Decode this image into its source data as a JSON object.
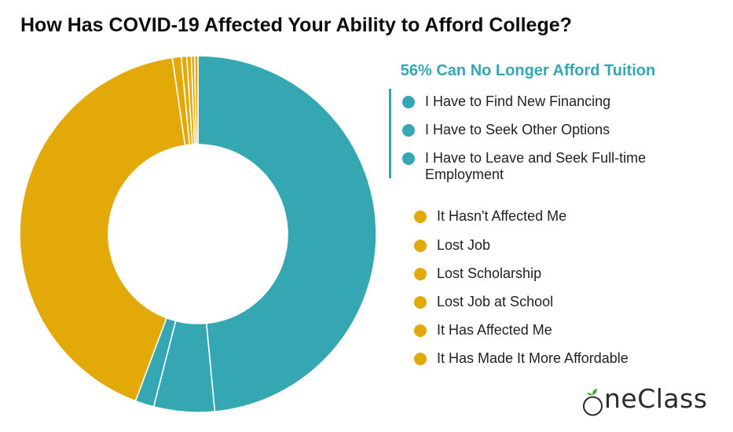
{
  "title": "How Has COVID-19 Affected Your Ability to Afford College?",
  "group_heading": "56% Can No Longer Afford Tuition",
  "brand": {
    "logo_first_letter": "O",
    "logo_rest": "neClass",
    "leaf_color": "#3cb043"
  },
  "colors": {
    "teal": "#34a7b2",
    "gold": "#e2a909"
  },
  "chart_data": {
    "type": "pie",
    "variant": "donut",
    "legend_position": "right",
    "series": [
      {
        "label": "I Have to Find New Financing",
        "value": 48.5,
        "color": "#34a7b2"
      },
      {
        "label": "I Have to Seek Other Options",
        "value": 5.5,
        "color": "#34a7b2"
      },
      {
        "label": "I Have to Leave and Seek Full-time Employment",
        "value": 1.7,
        "color": "#34a7b2"
      },
      {
        "label": "It Hasn't Affected Me",
        "value": 42.0,
        "color": "#e2a909"
      },
      {
        "label": "Lost Job",
        "value": 0.8,
        "color": "#e2a909"
      },
      {
        "label": "Lost Scholarship",
        "value": 0.5,
        "color": "#e2a909"
      },
      {
        "label": "Lost Job at School",
        "value": 0.4,
        "color": "#e2a909"
      },
      {
        "label": "It Has Affected Me",
        "value": 0.3,
        "color": "#e2a909"
      },
      {
        "label": "It Has Made It More Affordable",
        "value": 0.3,
        "color": "#e2a909"
      }
    ]
  }
}
